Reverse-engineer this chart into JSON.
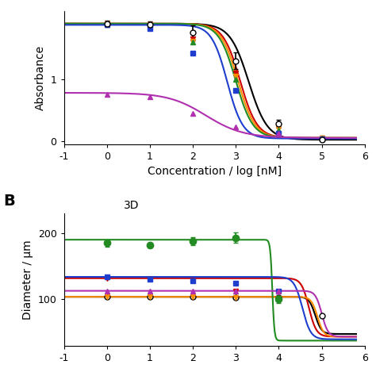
{
  "panel_A": {
    "xlabel": "Concentration / log [nM]",
    "ylabel": "Absorbance",
    "xlim": [
      -1,
      6
    ],
    "ylim": [
      -0.05,
      2.1
    ],
    "yticks": [
      0,
      1
    ],
    "xticks": [
      -1,
      0,
      1,
      2,
      3,
      4,
      5,
      6
    ],
    "series": [
      {
        "label": "Black",
        "color": "#000000",
        "marker": "o",
        "markerfacecolor": "white",
        "markersize": 5,
        "x_data": [
          0,
          1,
          2,
          3,
          4,
          5
        ],
        "y_data": [
          1.9,
          1.88,
          1.75,
          1.3,
          0.28,
          0.02
        ],
        "yerr": [
          0.05,
          0.05,
          0.12,
          0.14,
          0.06,
          0.01
        ],
        "ic50": 3.3,
        "hill": 2.0,
        "top": 1.9,
        "bottom": 0.02
      },
      {
        "label": "Red",
        "color": "#cc0000",
        "marker": "v",
        "markerfacecolor": "#cc0000",
        "markersize": 5,
        "x_data": [
          0,
          1,
          2,
          3,
          4,
          5
        ],
        "y_data": [
          1.9,
          1.88,
          1.65,
          1.1,
          0.22,
          0.05
        ],
        "ic50": 3.1,
        "hill": 2.2,
        "top": 1.9,
        "bottom": 0.05
      },
      {
        "label": "Orange",
        "color": "#ff8c00",
        "marker": "v",
        "markerfacecolor": "#ff8c00",
        "markersize": 5,
        "x_data": [
          0,
          1,
          2,
          3,
          4,
          5
        ],
        "y_data": [
          1.9,
          1.88,
          1.62,
          1.05,
          0.2,
          0.05
        ],
        "ic50": 3.05,
        "hill": 2.2,
        "top": 1.9,
        "bottom": 0.05
      },
      {
        "label": "Green",
        "color": "#228B22",
        "marker": "^",
        "markerfacecolor": "#228B22",
        "markersize": 5,
        "x_data": [
          0,
          1,
          2,
          3,
          4,
          5
        ],
        "y_data": [
          1.9,
          1.88,
          1.6,
          1.0,
          0.18,
          0.05
        ],
        "ic50": 3.0,
        "hill": 2.2,
        "top": 1.9,
        "bottom": 0.05
      },
      {
        "label": "Blue",
        "color": "#1e3fce",
        "marker": "s",
        "markerfacecolor": "#1e3fce",
        "markersize": 5,
        "x_data": [
          0,
          1,
          2,
          3,
          4,
          5
        ],
        "y_data": [
          1.88,
          1.82,
          1.42,
          0.82,
          0.12,
          0.04
        ],
        "ic50": 2.8,
        "hill": 2.4,
        "top": 1.88,
        "bottom": 0.04
      },
      {
        "label": "Purple",
        "color": "#b030b0",
        "marker": "^",
        "markerfacecolor": "#b030b0",
        "markersize": 5,
        "x_data": [
          0,
          1,
          2,
          3,
          4
        ],
        "y_data": [
          0.75,
          0.72,
          0.45,
          0.23,
          0.12
        ],
        "ic50": 2.3,
        "hill": 1.0,
        "top": 0.78,
        "bottom": 0.05
      }
    ]
  },
  "panel_B": {
    "title": "3D",
    "ylabel": "Diameter / μm",
    "xlim": [
      -1,
      6
    ],
    "ylim": [
      30,
      230
    ],
    "yticks": [
      100,
      200
    ],
    "xticks": [
      -1,
      0,
      1,
      2,
      3,
      4,
      5,
      6
    ],
    "series": [
      {
        "label": "Black",
        "color": "#000000",
        "marker": "o",
        "markerfacecolor": "white",
        "markersize": 5,
        "x_data": [
          0,
          1,
          2,
          3,
          4,
          5
        ],
        "y_data": [
          104,
          104,
          104,
          103,
          103,
          75
        ],
        "ic50": 4.85,
        "hill": 6.0,
        "top": 104,
        "bottom": 48
      },
      {
        "label": "Red",
        "color": "#cc0000",
        "marker": "v",
        "markerfacecolor": "#cc0000",
        "markersize": 5,
        "x_data": [
          0,
          1,
          2,
          3,
          4
        ],
        "y_data": [
          132,
          130,
          128,
          113,
          100
        ],
        "ic50": 4.7,
        "hill": 5.0,
        "top": 132,
        "bottom": 44
      },
      {
        "label": "Orange",
        "color": "#ff8c00",
        "marker": "v",
        "markerfacecolor": "#ff8c00",
        "markersize": 5,
        "x_data": [
          0,
          1,
          2,
          3,
          4
        ],
        "y_data": [
          104,
          104,
          104,
          103,
          102
        ],
        "ic50": 4.9,
        "hill": 6.0,
        "top": 104,
        "bottom": 44
      },
      {
        "label": "Green",
        "color": "#228B22",
        "marker": "o",
        "markerfacecolor": "#228B22",
        "markersize": 6,
        "x_data": [
          0,
          1,
          2,
          3,
          4
        ],
        "y_data": [
          185,
          182,
          188,
          193,
          100
        ],
        "yerr": [
          5,
          4,
          6,
          8,
          5
        ],
        "ic50": 3.85,
        "hill": 18.0,
        "top": 190,
        "bottom": 38
      },
      {
        "label": "Blue",
        "color": "#1e3fce",
        "marker": "s",
        "markerfacecolor": "#1e3fce",
        "markersize": 5,
        "x_data": [
          0,
          1,
          2,
          3,
          4
        ],
        "y_data": [
          134,
          130,
          128,
          125,
          113
        ],
        "ic50": 4.55,
        "hill": 4.5,
        "top": 134,
        "bottom": 40
      },
      {
        "label": "Purple",
        "color": "#b030b0",
        "marker": "^",
        "markerfacecolor": "#b030b0",
        "markersize": 5,
        "x_data": [
          0,
          1,
          2,
          3,
          4
        ],
        "y_data": [
          113,
          113,
          113,
          113,
          112
        ],
        "ic50": 5.0,
        "hill": 6.0,
        "top": 113,
        "bottom": 44
      }
    ]
  }
}
